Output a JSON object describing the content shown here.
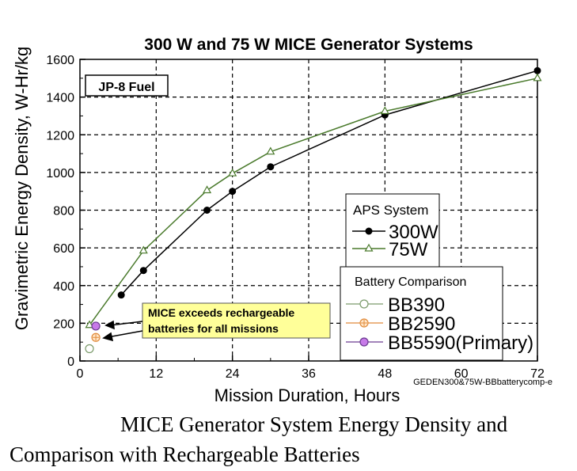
{
  "chart_data": {
    "type": "line",
    "title": "300 W and 75 W MICE Generator Systems",
    "xlabel": "Mission Duration, Hours",
    "ylabel": "Gravimetric Energy Density, W-Hr/kg",
    "xlim": [
      0,
      72
    ],
    "ylim": [
      0,
      1600
    ],
    "xticks": [
      0,
      12,
      24,
      36,
      48,
      60,
      72
    ],
    "yticks": [
      0,
      200,
      400,
      600,
      800,
      1000,
      1200,
      1400,
      1600
    ],
    "grid": true,
    "fuel_label": "JP-8 Fuel",
    "series": [
      {
        "name": "300W",
        "group": "APS System",
        "marker": "filled-circle",
        "color": "#000000",
        "x": [
          6.5,
          10,
          20,
          24,
          30,
          48,
          72
        ],
        "y": [
          350,
          480,
          800,
          900,
          1030,
          1305,
          1540
        ]
      },
      {
        "name": "75W",
        "group": "APS System",
        "marker": "open-triangle",
        "color": "#4a7a2c",
        "x": [
          1.5,
          10,
          20,
          24,
          30,
          48,
          72
        ],
        "y": [
          190,
          585,
          905,
          995,
          1110,
          1325,
          1500
        ]
      }
    ],
    "battery_points": [
      {
        "name": "BB390",
        "x": 1.5,
        "y": 65,
        "color": "#7a9a6a",
        "fill": "#ffffff"
      },
      {
        "name": "BB2590",
        "x": 2.5,
        "y": 125,
        "color": "#e08a3a",
        "fill": "#ffe6c8"
      },
      {
        "name": "BB5590(Primary)",
        "x": 2.5,
        "y": 185,
        "color": "#6a3a90",
        "fill": "#c77ae8"
      }
    ],
    "legend_aps_title": "APS System",
    "legend_battery_title": "Battery Comparison",
    "annotation": {
      "line1": "MICE exceeds rechargeable",
      "line2": "batteries for all missions"
    },
    "watermark": "GEDEN300&75W-BBbatterycomp-e"
  },
  "caption": {
    "line1": "MICE Generator System Energy Density and",
    "line2": "Comparison with Rechargeable Batteries"
  }
}
